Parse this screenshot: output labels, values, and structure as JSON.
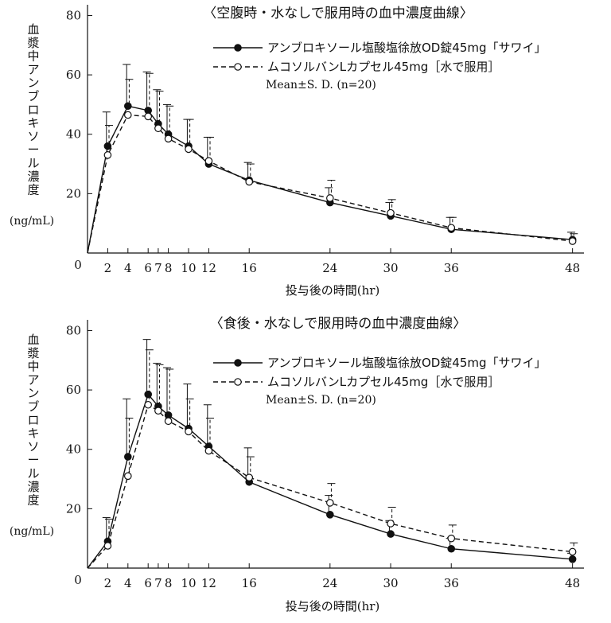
{
  "chart_data": [
    {
      "type": "line",
      "title": "〈空腹時・水なしで服用時の血中濃度曲線〉",
      "ylabel": "血漿中アンブロキソール濃度",
      "yunit": "(ng/mL)",
      "xlabel": "投与後の時間(hr)",
      "origin_label": "0",
      "xlim": [
        0,
        48.5
      ],
      "ylim": [
        0,
        82
      ],
      "yticks": [
        20,
        40,
        60,
        80
      ],
      "ytick_labels": [
        "20",
        "40",
        "60",
        "80"
      ],
      "xticks": [
        2,
        4,
        6,
        7,
        8,
        10,
        12,
        16,
        24,
        30,
        36,
        48
      ],
      "xtick_labels": [
        "2",
        "4",
        "6",
        "7",
        "8",
        "10",
        "12",
        "16",
        "24",
        "30",
        "36",
        "48"
      ],
      "x": [
        2,
        4,
        6,
        7,
        8,
        10,
        12,
        16,
        24,
        30,
        36,
        48
      ],
      "legend_note": "Mean±S. D. (n=20)",
      "legend_position": "top-right",
      "series": [
        {
          "name": "アンブロキソール塩酸塩徐放OD錠45mg「サワイ」",
          "marker": "filled",
          "line": "solid",
          "values": [
            36,
            49.5,
            48,
            43.5,
            40,
            36,
            30,
            24.5,
            17,
            12.5,
            8,
            4.5
          ],
          "sd": [
            11.5,
            14,
            13,
            11.5,
            10,
            9,
            9,
            6,
            5,
            4.5,
            4,
            2.5
          ]
        },
        {
          "name": "ムコソルバンLカプセル45mg［水で服用］",
          "marker": "open",
          "line": "dashed",
          "values": [
            33,
            46.5,
            46,
            42,
            38.5,
            35,
            31,
            24,
            18.5,
            13.5,
            8.5,
            4
          ],
          "sd": [
            10,
            12,
            14.5,
            12.5,
            11,
            10,
            8,
            6,
            6,
            4.5,
            3.5,
            2.5
          ]
        }
      ]
    },
    {
      "type": "line",
      "title": "〈食後・水なしで服用時の血中濃度曲線〉",
      "ylabel": "血漿中アンブロキソール濃度",
      "yunit": "(ng/mL)",
      "xlabel": "投与後の時間(hr)",
      "origin_label": "0",
      "xlim": [
        0,
        48.5
      ],
      "ylim": [
        0,
        82
      ],
      "yticks": [
        20,
        40,
        60,
        80
      ],
      "ytick_labels": [
        "20",
        "40",
        "60",
        "80"
      ],
      "xticks": [
        2,
        4,
        6,
        7,
        8,
        10,
        12,
        16,
        24,
        30,
        36,
        48
      ],
      "xtick_labels": [
        "2",
        "4",
        "6",
        "7",
        "8",
        "10",
        "12",
        "16",
        "24",
        "30",
        "36",
        "48"
      ],
      "x": [
        2,
        4,
        6,
        7,
        8,
        10,
        12,
        16,
        24,
        30,
        36,
        48
      ],
      "legend_note": "Mean±S. D. (n=20)",
      "legend_position": "top-right",
      "series": [
        {
          "name": "アンブロキソール塩酸塩徐放OD錠45mg「サワイ」",
          "marker": "filled",
          "line": "solid",
          "values": [
            9,
            37.5,
            58.5,
            54.5,
            51.5,
            47,
            41,
            29,
            18,
            11.5,
            6.5,
            3
          ],
          "sd": [
            8,
            19.5,
            18.5,
            14.5,
            16,
            15,
            14,
            11.5,
            6.5,
            4.5,
            3.5,
            2
          ]
        },
        {
          "name": "ムコソルバンLカプセル45mg［水で服用］",
          "marker": "open",
          "line": "dashed",
          "values": [
            7.5,
            31,
            55,
            53,
            49.5,
            46,
            39.5,
            30.5,
            22,
            15,
            10,
            5.5
          ],
          "sd": [
            9,
            19.5,
            18.5,
            15.5,
            17.5,
            11,
            11,
            7,
            6.5,
            5.5,
            4.5,
            3
          ]
        }
      ]
    }
  ]
}
